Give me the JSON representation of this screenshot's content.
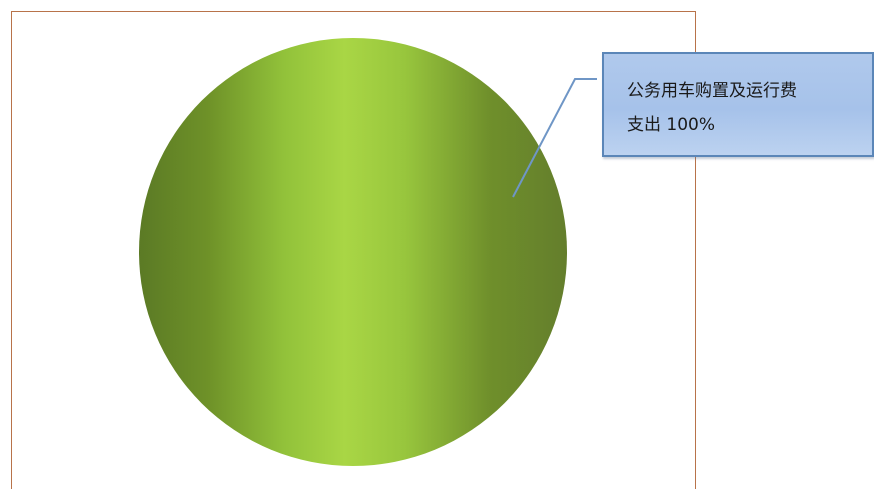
{
  "chart_data": {
    "type": "pie",
    "categories": [
      "公务用车购置及运行费支出"
    ],
    "values": [
      100
    ],
    "slices": [
      {
        "label": "公务用车购置及运行费支出",
        "value": 100,
        "percent_label": "100%"
      }
    ],
    "colors": {
      "slice_dark": "#5b7a25",
      "slice_light": "#a8d444",
      "leader_line": "#6f96c6",
      "plot_border": "#b8734a"
    },
    "data_label": {
      "line1": "公务用车购置及运行费",
      "line2": "支出 100%"
    },
    "legend": "none"
  }
}
